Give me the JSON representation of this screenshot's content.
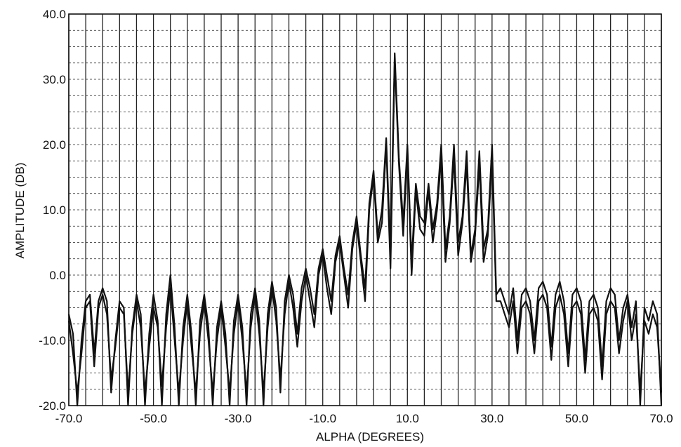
{
  "chart_data": {
    "type": "line",
    "title": "",
    "xlabel": "ALPHA (DEGREES)",
    "ylabel": "AMPLITUDE (DB)",
    "xlim": [
      -70,
      70
    ],
    "ylim": [
      -20,
      40
    ],
    "x_tick_labels": [
      "-70.0",
      "-50.0",
      "-30.0",
      "-10.0",
      "10.0",
      "30.0",
      "50.0",
      "70.0"
    ],
    "y_tick_labels": [
      "-20.0",
      "-10.0",
      "0.0",
      "10.0",
      "20.0",
      "30.0",
      "40.0"
    ],
    "grid": true,
    "grid_x_step": 4,
    "grid_y_step": 2.5,
    "colors": {
      "line": "#111111",
      "grid": "#222222",
      "background": "#ffffff"
    },
    "series": [
      {
        "x": [
          -70.0,
          -69.0,
          -68.0,
          -67.0,
          -66.0,
          -65.0,
          -64.0,
          -63.0,
          -62.0,
          -61.0,
          -60.0,
          -59.0,
          -58.0,
          -57.0,
          -56.0,
          -55.0,
          -54.0,
          -53.0,
          -52.0,
          -51.0,
          -50.0,
          -49.0,
          -48.0,
          -47.0,
          -46.0,
          -45.0,
          -44.0,
          -43.0,
          -42.0,
          -41.0,
          -40.0,
          -39.0,
          -38.0,
          -37.0,
          -36.0,
          -35.0,
          -34.0,
          -33.0,
          -32.0,
          -31.0,
          -30.0,
          -29.0,
          -28.0,
          -27.0,
          -26.0,
          -25.0,
          -24.0,
          -23.0,
          -22.0,
          -21.0,
          -20.0,
          -19.0,
          -18.0,
          -17.0,
          -16.0,
          -15.0,
          -14.0,
          -13.0,
          -12.0,
          -11.0,
          -10.0,
          -9.0,
          -8.0,
          -7.0,
          -6.0,
          -5.0,
          -4.0,
          -3.0,
          -2.0,
          -1.0,
          0.0,
          1.0,
          2.0,
          3.0,
          4.0,
          5.0,
          6.0,
          7.0,
          8.0,
          9.0,
          10.0,
          11.0,
          12.0,
          13.0,
          14.0,
          15.0,
          16.0,
          17.0,
          18.0,
          19.0,
          20.0,
          21.0,
          22.0,
          23.0,
          24.0,
          25.0,
          26.0,
          27.0,
          28.0,
          29.0,
          30.0,
          31.0,
          32.0,
          33.0,
          34.0,
          35.0,
          36.0,
          37.0,
          38.0,
          39.0,
          40.0,
          41.0,
          42.0,
          43.0,
          44.0,
          45.0,
          46.0,
          47.0,
          48.0,
          49.0,
          50.0,
          51.0,
          52.0,
          53.0,
          54.0,
          55.0,
          56.0,
          57.0,
          58.0,
          59.0,
          60.0,
          61.0,
          62.0,
          63.0,
          64.0,
          65.0,
          66.0,
          67.0,
          68.0,
          69.0,
          70.0
        ],
        "y": [
          -6,
          -9,
          -20,
          -10,
          -4,
          -3,
          -12,
          -4,
          -2,
          -4,
          -18,
          -10,
          -4,
          -5,
          -20,
          -8,
          -3,
          -6,
          -20,
          -9,
          -3,
          -7,
          -20,
          -6,
          0,
          -8,
          -20,
          -8,
          -3,
          -9,
          -20,
          -7,
          -3,
          -8,
          -20,
          -8,
          -4,
          -9,
          -20,
          -7,
          -3,
          -8,
          -20,
          -6,
          -2,
          -7,
          -20,
          -6,
          -1,
          -5,
          -18,
          -4,
          0,
          -3,
          -9,
          -2,
          1,
          -2,
          -6,
          1,
          4,
          0,
          -4,
          3,
          6,
          1,
          -3,
          5,
          9,
          3,
          -2,
          11,
          16,
          6,
          10,
          21,
          3,
          34,
          18,
          8,
          20,
          2,
          14,
          9,
          8,
          14,
          7,
          11,
          20,
          4,
          9,
          20,
          5,
          9,
          19,
          3,
          7,
          19,
          4,
          7,
          20,
          -3,
          -2,
          -4,
          -6,
          -2,
          -10,
          -3,
          -2,
          -4,
          -10,
          -2,
          -1,
          -3,
          -11,
          -3,
          -1,
          -4,
          -12,
          -3,
          -2,
          -4,
          -13,
          -4,
          -3,
          -5,
          -14,
          -4,
          -2,
          -3,
          -10,
          -5,
          -3,
          -8,
          -4,
          -20,
          -5,
          -7,
          -4,
          -6,
          -20
        ]
      },
      {
        "x": [
          -70.0,
          -69.0,
          -68.0,
          -67.0,
          -66.0,
          -65.0,
          -64.0,
          -63.0,
          -62.0,
          -61.0,
          -60.0,
          -59.0,
          -58.0,
          -57.0,
          -56.0,
          -55.0,
          -54.0,
          -53.0,
          -52.0,
          -51.0,
          -50.0,
          -49.0,
          -48.0,
          -47.0,
          -46.0,
          -45.0,
          -44.0,
          -43.0,
          -42.0,
          -41.0,
          -40.0,
          -39.0,
          -38.0,
          -37.0,
          -36.0,
          -35.0,
          -34.0,
          -33.0,
          -32.0,
          -31.0,
          -30.0,
          -29.0,
          -28.0,
          -27.0,
          -26.0,
          -25.0,
          -24.0,
          -23.0,
          -22.0,
          -21.0,
          -20.0,
          -19.0,
          -18.0,
          -17.0,
          -16.0,
          -15.0,
          -14.0,
          -13.0,
          -12.0,
          -11.0,
          -10.0,
          -9.0,
          -8.0,
          -7.0,
          -6.0,
          -5.0,
          -4.0,
          -3.0,
          -2.0,
          -1.0,
          0.0,
          1.0,
          2.0,
          3.0,
          4.0,
          5.0,
          6.0,
          7.0,
          8.0,
          9.0,
          10.0,
          11.0,
          12.0,
          13.0,
          14.0,
          15.0,
          16.0,
          17.0,
          18.0,
          19.0,
          20.0,
          21.0,
          22.0,
          23.0,
          24.0,
          25.0,
          26.0,
          27.0,
          28.0,
          29.0,
          30.0,
          31.0,
          32.0,
          33.0,
          34.0,
          35.0,
          36.0,
          37.0,
          38.0,
          39.0,
          40.0,
          41.0,
          42.0,
          43.0,
          44.0,
          45.0,
          46.0,
          47.0,
          48.0,
          49.0,
          50.0,
          51.0,
          52.0,
          53.0,
          54.0,
          55.0,
          56.0,
          57.0,
          58.0,
          59.0,
          60.0,
          61.0,
          62.0,
          63.0,
          64.0,
          65.0,
          66.0,
          67.0,
          68.0,
          69.0,
          70.0
        ],
        "y": [
          -7,
          -12,
          -18,
          -12,
          -5,
          -4,
          -14,
          -5,
          -3,
          -6,
          -16,
          -11,
          -5,
          -6,
          -18,
          -9,
          -4,
          -8,
          -18,
          -11,
          -5,
          -8,
          -17,
          -8,
          -2,
          -10,
          -18,
          -10,
          -4,
          -11,
          -18,
          -9,
          -4,
          -10,
          -18,
          -10,
          -5,
          -11,
          -18,
          -9,
          -4,
          -10,
          -18,
          -8,
          -3,
          -9,
          -18,
          -8,
          -2,
          -7,
          -16,
          -6,
          -1,
          -5,
          -11,
          -4,
          0,
          -4,
          -8,
          0,
          3,
          -2,
          -6,
          2,
          5,
          0,
          -5,
          4,
          8,
          2,
          -4,
          10,
          15,
          5,
          8,
          20,
          1,
          33,
          17,
          6,
          19,
          0,
          13,
          7,
          6,
          13,
          5,
          10,
          18,
          2,
          8,
          18,
          3,
          8,
          17,
          2,
          6,
          17,
          2,
          6,
          18,
          -4,
          -4,
          -6,
          -8,
          -4,
          -12,
          -5,
          -4,
          -6,
          -12,
          -4,
          -3,
          -5,
          -13,
          -5,
          -3,
          -6,
          -14,
          -5,
          -4,
          -6,
          -15,
          -6,
          -5,
          -7,
          -16,
          -6,
          -4,
          -5,
          -12,
          -7,
          -4,
          -10,
          -6,
          -18,
          -7,
          -9,
          -6,
          -8,
          -18
        ]
      }
    ]
  }
}
